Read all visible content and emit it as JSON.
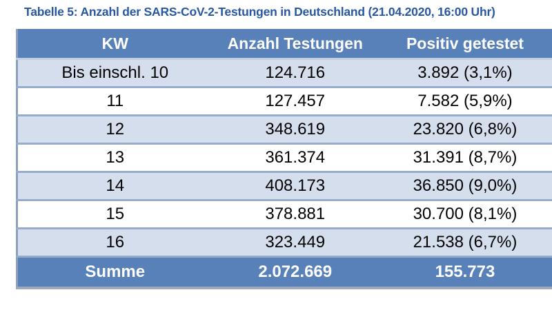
{
  "title": "Tabelle 5: Anzahl der SARS-CoV-2-Testungen in Deutschland (21.04.2020, 16:00 Uhr)",
  "table": {
    "columns": [
      "KW",
      "Anzahl Testungen",
      "Positiv getestet"
    ],
    "rows": [
      [
        "Bis einschl. 10",
        "124.716",
        "3.892 (3,1%)"
      ],
      [
        "11",
        "127.457",
        "7.582 (5,9%)"
      ],
      [
        "12",
        "348.619",
        "23.820 (6,8%)"
      ],
      [
        "13",
        "361.374",
        "31.391 (8,7%)"
      ],
      [
        "14",
        "408.173",
        "36.850 (9,0%)"
      ],
      [
        "15",
        "378.881",
        "30.700 (8,1%)"
      ],
      [
        "16",
        "323.449",
        "21.538 (6,7%)"
      ]
    ],
    "footer": [
      "Summe",
      "2.072.669",
      "155.773"
    ]
  },
  "colors": {
    "header_bg": "#5881BA",
    "alt_row_bg": "#D5DEED",
    "row_separator": "#97ABCC",
    "title_text": "#2857A6",
    "header_text": "#FFFFFF"
  }
}
